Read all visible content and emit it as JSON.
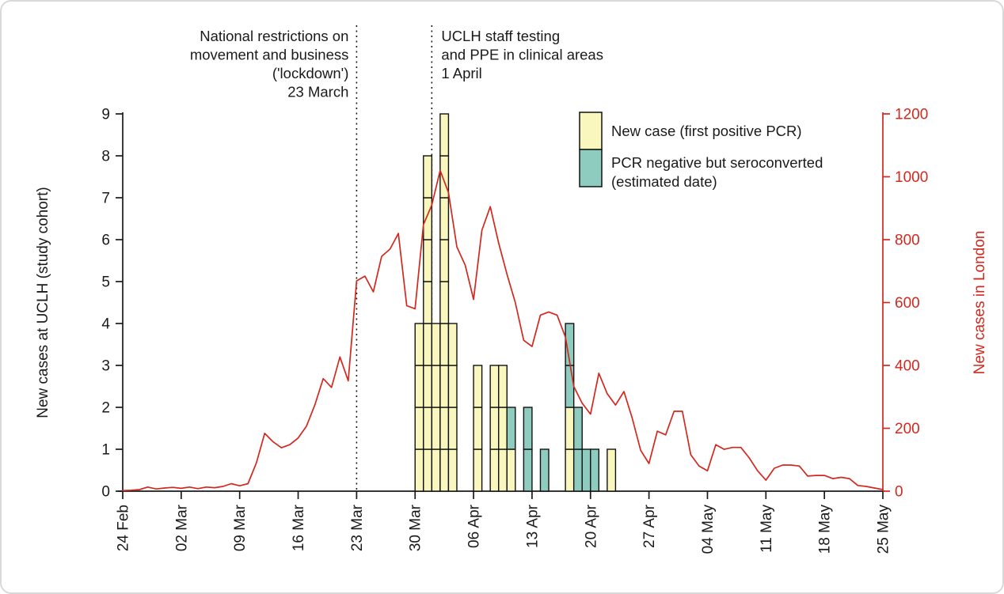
{
  "figure": {
    "y_left_axis": {
      "label": "New cases at UCLH (study cohort)",
      "ticks": [
        0,
        1,
        2,
        3,
        4,
        5,
        6,
        7,
        8,
        9
      ],
      "range": [
        0,
        9
      ],
      "color": "#1a1a1a"
    },
    "y_right_axis": {
      "label": "New cases in London",
      "ticks": [
        0,
        200,
        400,
        600,
        800,
        1000,
        1200
      ],
      "range": [
        0,
        1200
      ],
      "color": "#d2281e"
    },
    "x_axis": {
      "tick_labels": [
        "24 Feb",
        "02 Mar",
        "09 Mar",
        "16 Mar",
        "23 Mar",
        "30 Mar",
        "06 Apr",
        "13 Apr",
        "20 Apr",
        "27 Apr",
        "04 May",
        "11 May",
        "18 May",
        "25 May"
      ]
    },
    "reference_lines": [
      {
        "date": "23 Mar",
        "style": "dotted"
      },
      {
        "date": "01 Apr",
        "style": "dotted"
      }
    ],
    "annotations": [
      {
        "lines": [
          "National restrictions on",
          "movement and business",
          "('lockdown')",
          "23 March"
        ],
        "align": "right",
        "anchor_date": "23 Mar"
      },
      {
        "lines": [
          "UCLH staff testing",
          "and PPE in clinical areas",
          "1 April"
        ],
        "align": "left",
        "anchor_date": "01 Apr"
      }
    ],
    "legend": [
      {
        "label_lines": [
          "New case (first positive PCR)"
        ],
        "color_key": "pcr"
      },
      {
        "label_lines": [
          "PCR negative but seroconverted",
          "(estimated date)"
        ],
        "color_key": "sero"
      }
    ],
    "colors": {
      "pcr": "#f9f7bd",
      "sero": "#8fccc0",
      "line": "#d2281e",
      "axis": "#1a1a1a",
      "bar_border": "#111111"
    }
  },
  "chart_data": [
    {
      "type": "bar",
      "stacked": true,
      "title": "",
      "ylabel": "New cases at UCLH (study cohort)",
      "ylim": [
        0,
        9
      ],
      "series_names": [
        "New case (first positive PCR)",
        "PCR negative but seroconverted (estimated date)"
      ],
      "bars": [
        {
          "date": "30 Mar",
          "pcr": 4,
          "sero": 0
        },
        {
          "date": "31 Mar",
          "pcr": 8,
          "sero": 0
        },
        {
          "date": "01 Apr",
          "pcr": 4,
          "sero": 0
        },
        {
          "date": "02 Apr",
          "pcr": 9,
          "sero": 0
        },
        {
          "date": "03 Apr",
          "pcr": 4,
          "sero": 0
        },
        {
          "date": "06 Apr",
          "pcr": 3,
          "sero": 0
        },
        {
          "date": "08 Apr",
          "pcr": 3,
          "sero": 0
        },
        {
          "date": "09 Apr",
          "pcr": 3,
          "sero": 0
        },
        {
          "date": "10 Apr",
          "pcr": 1,
          "sero": 1
        },
        {
          "date": "12 Apr",
          "pcr": 0,
          "sero": 2
        },
        {
          "date": "14 Apr",
          "pcr": 0,
          "sero": 1
        },
        {
          "date": "17 Apr",
          "pcr": 2,
          "sero": 2
        },
        {
          "date": "18 Apr",
          "pcr": 0,
          "sero": 2
        },
        {
          "date": "19 Apr",
          "pcr": 0,
          "sero": 1
        },
        {
          "date": "20 Apr",
          "pcr": 0,
          "sero": 1
        },
        {
          "date": "22 Apr",
          "pcr": 1,
          "sero": 0
        }
      ]
    },
    {
      "type": "line",
      "name": "New cases in London",
      "ylabel": "New cases in London",
      "ylim": [
        0,
        1200
      ],
      "x_start": "24 Feb",
      "x_end": "25 May",
      "daily_values": [
        2,
        3,
        5,
        13,
        7,
        10,
        12,
        9,
        13,
        8,
        13,
        11,
        15,
        24,
        17,
        24,
        90,
        184,
        157,
        138,
        148,
        169,
        207,
        274,
        358,
        330,
        427,
        351,
        669,
        684,
        634,
        747,
        770,
        820,
        590,
        580,
        848,
        910,
        1020,
        950,
        777,
        719,
        610,
        830,
        905,
        790,
        690,
        600,
        480,
        460,
        560,
        570,
        560,
        490,
        333,
        280,
        245,
        375,
        310,
        274,
        317,
        232,
        130,
        88,
        191,
        179,
        254,
        254,
        116,
        80,
        65,
        148,
        133,
        139,
        139,
        106,
        65,
        35,
        73,
        83,
        83,
        80,
        48,
        50,
        50,
        40,
        44,
        40,
        18,
        15,
        10,
        5
      ]
    }
  ]
}
